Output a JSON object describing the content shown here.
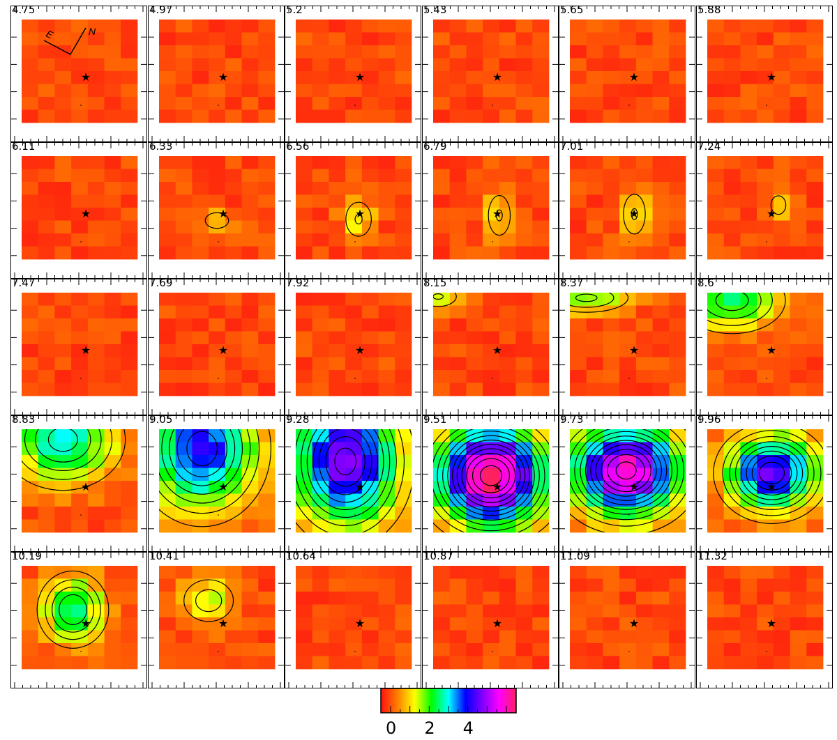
{
  "chart_data": {
    "type": "heatmap",
    "title": "",
    "panel_labels": [
      "4.75",
      "4.97",
      "5.2",
      "5.43",
      "5.65",
      "5.88",
      "6.11",
      "6.33",
      "6.56",
      "6.79",
      "7.01",
      "7.24",
      "7.47",
      "7.69",
      "7.92",
      "8.15",
      "8.37",
      "8.6",
      "8.83",
      "9.05",
      "9.28",
      "9.51",
      "9.73",
      "9.96",
      "10.19",
      "10.41",
      "10.64",
      "10.87",
      "11.09",
      "11.32"
    ],
    "grid_size": [
      7,
      8
    ],
    "compass": {
      "east": "E",
      "north": "N"
    },
    "colorbar": {
      "range": [
        0,
        6
      ],
      "ticks": [
        0,
        2,
        4
      ],
      "colors": [
        "#ff1010",
        "#ff8000",
        "#ffff00",
        "#00ff00",
        "#00ffff",
        "#0000ff",
        "#8000ff",
        "#ff00ff",
        "#ff2060"
      ]
    },
    "emission_peaks": [
      {
        "panel": 7,
        "x": 3.5,
        "y": 5.0,
        "peak": 1.0,
        "sx": 0.7,
        "sy": 0.6
      },
      {
        "panel": 8,
        "x": 3.8,
        "y": 4.9,
        "peak": 1.1,
        "sx": 0.7,
        "sy": 1.2
      },
      {
        "panel": 9,
        "x": 4.0,
        "y": 4.6,
        "peak": 1.1,
        "sx": 0.6,
        "sy": 1.4
      },
      {
        "panel": 10,
        "x": 3.9,
        "y": 4.5,
        "peak": 1.1,
        "sx": 0.6,
        "sy": 1.4
      },
      {
        "panel": 11,
        "x": 4.3,
        "y": 3.8,
        "peak": 0.9,
        "sx": 0.5,
        "sy": 0.8
      },
      {
        "panel": 15,
        "x": 0.3,
        "y": 0.3,
        "peak": 1.1,
        "sx": 1.0,
        "sy": 0.7
      },
      {
        "panel": 16,
        "x": 1.0,
        "y": 0.4,
        "peak": 1.6,
        "sx": 1.8,
        "sy": 0.8
      },
      {
        "panel": 17,
        "x": 1.5,
        "y": 0.6,
        "peak": 2.2,
        "sx": 2.0,
        "sy": 1.6
      },
      {
        "panel": 18,
        "x": 2.5,
        "y": 0.8,
        "peak": 2.6,
        "sx": 2.2,
        "sy": 2.3
      },
      {
        "panel": 19,
        "x": 2.6,
        "y": 1.5,
        "peak": 3.6,
        "sx": 2.2,
        "sy": 3.2
      },
      {
        "panel": 20,
        "x": 3.0,
        "y": 2.5,
        "peak": 4.4,
        "sx": 2.1,
        "sy": 3.4
      },
      {
        "panel": 21,
        "x": 3.5,
        "y": 3.6,
        "peak": 5.8,
        "sx": 2.2,
        "sy": 2.6
      },
      {
        "panel": 22,
        "x": 3.4,
        "y": 3.2,
        "peak": 5.3,
        "sx": 2.2,
        "sy": 2.4
      },
      {
        "panel": 23,
        "x": 3.9,
        "y": 3.4,
        "peak": 4.1,
        "sx": 1.8,
        "sy": 2.0
      },
      {
        "panel": 24,
        "x": 3.1,
        "y": 3.4,
        "peak": 2.4,
        "sx": 1.3,
        "sy": 1.8
      },
      {
        "panel": 25,
        "x": 3.0,
        "y": 2.7,
        "peak": 1.3,
        "sx": 1.2,
        "sy": 1.3
      }
    ]
  }
}
